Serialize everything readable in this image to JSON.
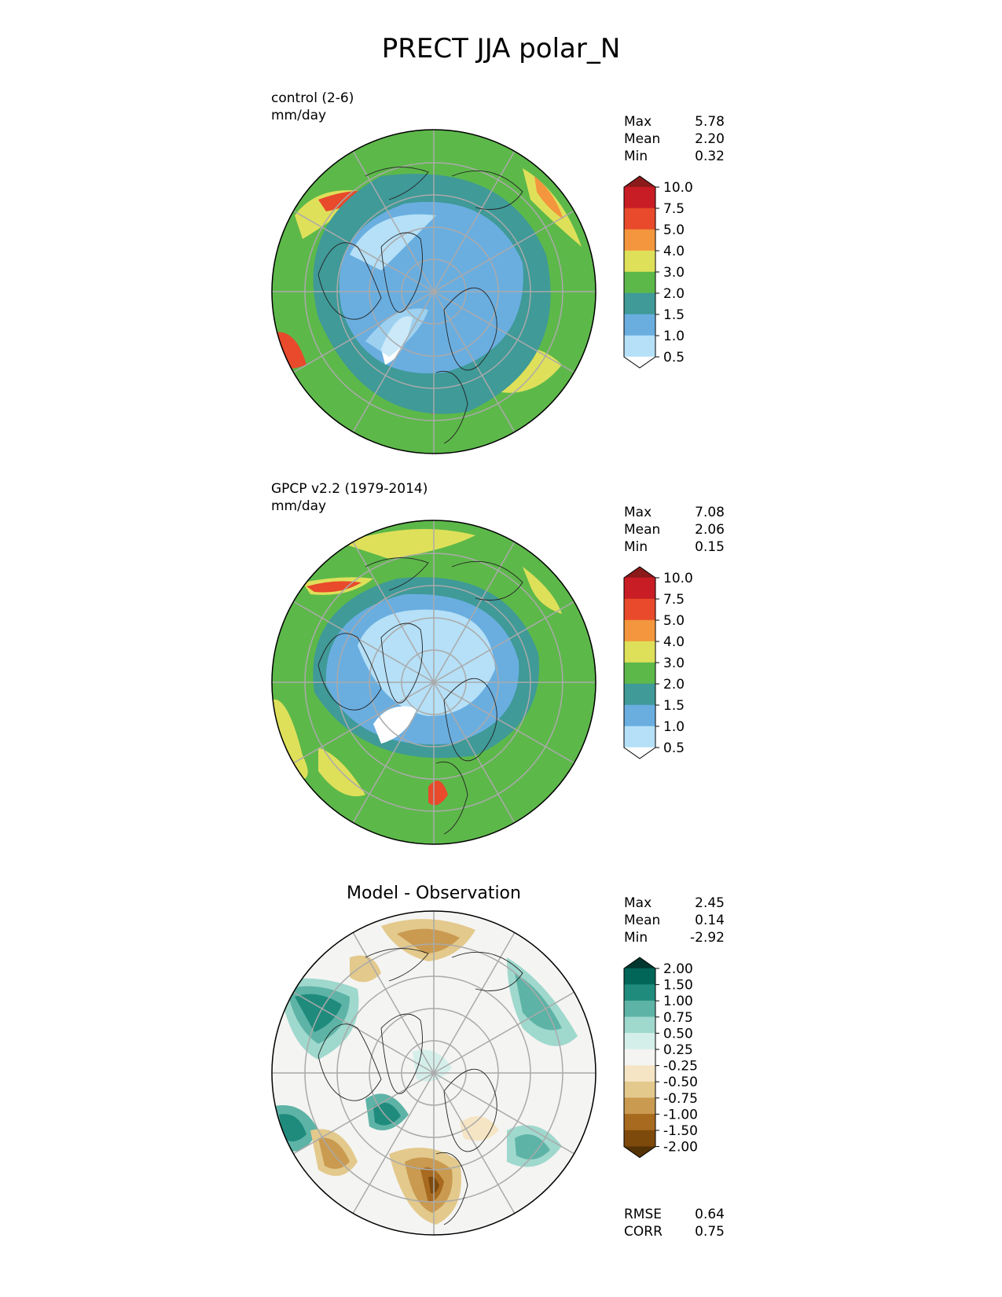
{
  "title": "PRECT JJA polar_N",
  "panels": [
    {
      "label": "control (2-6)",
      "units": "mm/day",
      "stats": [
        {
          "name": "Max",
          "value": "5.78"
        },
        {
          "name": "Mean",
          "value": "2.20"
        },
        {
          "name": "Min",
          "value": "0.32"
        }
      ],
      "colorbar": {
        "ticks": [
          "10.0",
          "7.5",
          "5.0",
          "4.0",
          "3.0",
          "2.0",
          "1.5",
          "1.0",
          "0.5"
        ],
        "colors": [
          "#8b1a1a",
          "#c81d25",
          "#e84a2b",
          "#f3963d",
          "#dfe05a",
          "#5db84a",
          "#3f9a98",
          "#6aaee0",
          "#b5e0f7",
          "#ffffff"
        ]
      }
    },
    {
      "label": "GPCP v2.2 (1979-2014)",
      "units": "mm/day",
      "stats": [
        {
          "name": "Max",
          "value": "7.08"
        },
        {
          "name": "Mean",
          "value": "2.06"
        },
        {
          "name": "Min",
          "value": "0.15"
        }
      ],
      "colorbar": {
        "ticks": [
          "10.0",
          "7.5",
          "5.0",
          "4.0",
          "3.0",
          "2.0",
          "1.5",
          "1.0",
          "0.5"
        ],
        "colors": [
          "#8b1a1a",
          "#c81d25",
          "#e84a2b",
          "#f3963d",
          "#dfe05a",
          "#5db84a",
          "#3f9a98",
          "#6aaee0",
          "#b5e0f7",
          "#ffffff"
        ]
      }
    },
    {
      "label": "Model - Observation",
      "stats": [
        {
          "name": "Max",
          "value": "2.45"
        },
        {
          "name": "Mean",
          "value": "0.14"
        },
        {
          "name": "Min",
          "value": "-2.92"
        }
      ],
      "colorbar": {
        "ticks": [
          "2.00",
          "1.50",
          "1.00",
          "0.75",
          "0.50",
          "0.25",
          "-0.25",
          "-0.50",
          "-0.75",
          "-1.00",
          "-1.50",
          "-2.00"
        ],
        "colors": [
          "#01372e",
          "#016557",
          "#1f8b7d",
          "#5db3a6",
          "#9fd8cd",
          "#d4efe9",
          "#f4f4f2",
          "#f5e5c4",
          "#e3c98c",
          "#c99a50",
          "#a86a1f",
          "#7e4a0c",
          "#553206"
        ]
      },
      "metrics": [
        {
          "name": "RMSE",
          "value": "0.64"
        },
        {
          "name": "CORR",
          "value": "0.75"
        }
      ]
    }
  ]
}
